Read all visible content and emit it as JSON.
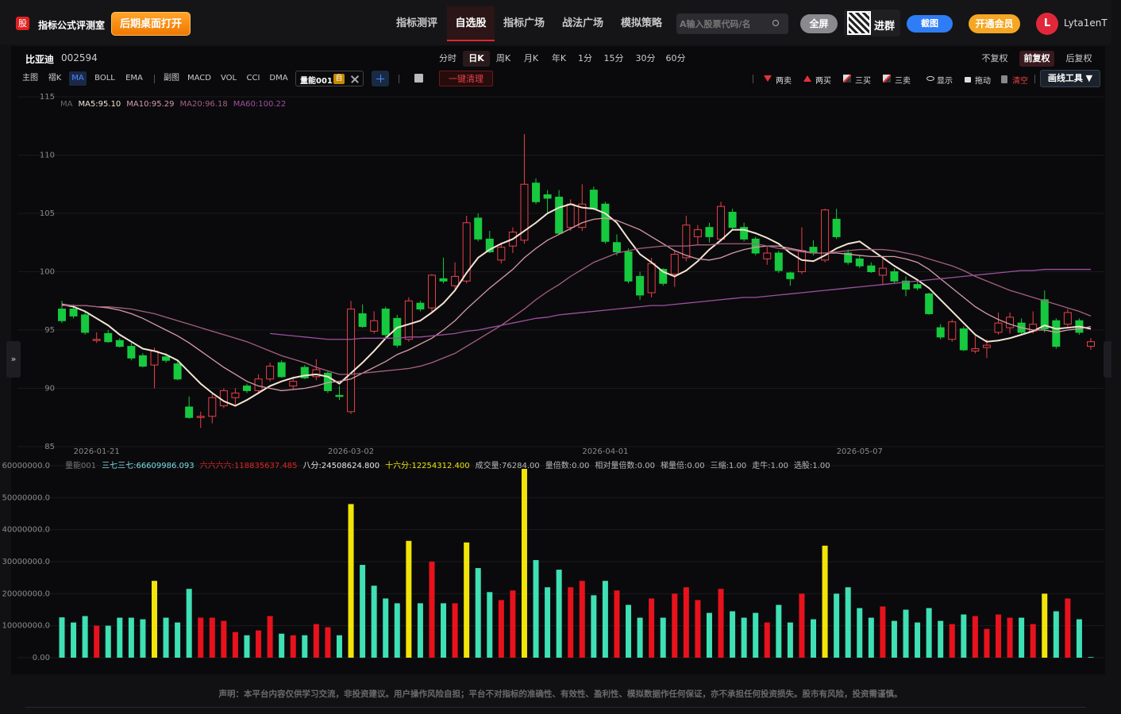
{
  "header": {
    "logo": "股",
    "app_name": "指标公式评测室",
    "open_desktop": "后期桌面打开",
    "nav": [
      "指标测评",
      "自选股",
      "指标广场",
      "战法广场",
      "模拟策略"
    ],
    "search_placeholder": "A输入股票代码/名",
    "fullscreen": "全屏",
    "join_group": "进群",
    "screenshot": "截图",
    "vip": "开通会员",
    "avatar": "L",
    "username": "Lyta1enT"
  },
  "stock": {
    "name": "比亚迪",
    "code": "002594"
  },
  "periods": [
    "分时",
    "日K",
    "周K",
    "月K",
    "年K",
    "1分",
    "15分",
    "30分",
    "60分"
  ],
  "adjust": [
    "不复权",
    "前复权",
    "后复权"
  ],
  "indicators": [
    "主图",
    "褶K",
    "MA",
    "BOLL",
    "EMA",
    "副图",
    "MACD",
    "VOL",
    "CCI",
    "DMA"
  ],
  "active_indicator": {
    "name": "量能001",
    "tag": "自"
  },
  "clear_button": "一键清理",
  "tools": [
    "两卖",
    "两买",
    "三买",
    "三卖",
    "显示",
    "拖动",
    "清空"
  ],
  "draw_tools": "画线工具 ▼",
  "sidebar_toggle": "»",
  "disclaimer": "声明：本平台内容仅供学习交流，非投资建议。用户操作风险自担；平台不对指标的准确性、有效性、盈利性、模拟数据作任何保证，亦不承担任何投资损失。股市有风险，投资需谨慎。",
  "chart_data": [
    {
      "type": "candlestick",
      "legend_title": "MA",
      "categories": [
        null,
        null,
        null,
        "2026-01-21",
        null,
        null,
        null,
        null,
        null,
        null,
        null,
        null,
        null,
        null,
        null,
        null,
        null,
        null,
        null,
        null,
        null,
        null,
        null,
        null,
        null,
        "2026-03-02",
        null,
        null,
        null,
        null,
        null,
        null,
        null,
        null,
        null,
        null,
        null,
        null,
        null,
        null,
        null,
        null,
        null,
        null,
        null,
        null,
        null,
        "2026-04-01",
        null,
        null,
        null,
        null,
        null,
        null,
        null,
        null,
        null,
        null,
        null,
        null,
        null,
        null,
        null,
        null,
        null,
        null,
        null,
        null,
        null,
        "2026-05-07",
        null,
        null,
        null,
        null,
        null,
        null,
        null,
        null,
        null,
        null,
        null,
        null,
        null,
        null,
        null,
        null,
        null,
        null,
        null,
        null
      ],
      "open": [
        96.8,
        96.8,
        96.3,
        94.1,
        94.7,
        94.1,
        93.6,
        92.8,
        92,
        92.7,
        92.1,
        88.4,
        87.5,
        87.6,
        88.5,
        89.2,
        90.2,
        89.8,
        90.8,
        92.2,
        90.2,
        91.8,
        91,
        91.3,
        89.4,
        88,
        96.4,
        94.9,
        96.8,
        96,
        94.2,
        97.3,
        96.9,
        99.4,
        98.8,
        99.2,
        104.6,
        102.8,
        101,
        102.2,
        102.7,
        107.6,
        106.6,
        106.4,
        103.8,
        103.8,
        107,
        105.8,
        102.5,
        101.7,
        99.6,
        98.2,
        100.2,
        99.8,
        101.2,
        103,
        103.8,
        102.8,
        105.1,
        103.8,
        102.8,
        101.1,
        101.6,
        99.9,
        100,
        102.1,
        101,
        104.5,
        101.6,
        101.1,
        100.5,
        99.7,
        100,
        99.2,
        98.9,
        98.1,
        95.2,
        94.2,
        95.1,
        93.2,
        93.5,
        94.8,
        95.2,
        95.6,
        94.9,
        97.6,
        95.8,
        95.5,
        95.8,
        93.6
      ],
      "high": [
        97.5,
        97.2,
        96.6,
        94.8,
        95,
        94.3,
        93.9,
        93,
        93.5,
        93,
        92.3,
        89.3,
        88,
        89.5,
        90,
        90,
        90.4,
        91.2,
        92.2,
        92.4,
        91,
        92,
        92.5,
        91.5,
        90.2,
        97.5,
        97.2,
        96.6,
        97,
        96.3,
        97.8,
        97.5,
        99.8,
        101.2,
        100.8,
        104.8,
        105,
        103.5,
        102.5,
        103.8,
        111.8,
        108,
        107,
        107,
        106.2,
        107.5,
        107.3,
        106,
        103.2,
        102,
        100,
        101.2,
        100.3,
        101.8,
        104.8,
        104,
        104.2,
        106,
        105.4,
        104.2,
        103,
        102.2,
        101.8,
        100,
        103.8,
        102.7,
        105.4,
        105.4,
        101.9,
        101.4,
        100.8,
        101.1,
        100.3,
        99.6,
        99.2,
        98.2,
        95.5,
        95.9,
        95.3,
        94.5,
        94.2,
        96.5,
        96.5,
        96,
        96.6,
        98.4,
        96,
        96.8,
        96,
        94.3
      ],
      "low": [
        95.6,
        96,
        94.6,
        93.9,
        93.9,
        93.5,
        92.4,
        91.8,
        90,
        92.2,
        90.7,
        87.4,
        86.6,
        87,
        88.3,
        88.6,
        89.6,
        89.5,
        90.6,
        90.9,
        89.9,
        90.8,
        90.7,
        89.6,
        89,
        87.8,
        95.2,
        94.7,
        94.4,
        93.5,
        94,
        96.6,
        96.5,
        99,
        98.5,
        99,
        102.6,
        101.6,
        100.7,
        101.6,
        102.4,
        105.8,
        105,
        103.2,
        103.5,
        103.5,
        105.3,
        102.4,
        101.4,
        99,
        97.6,
        97.8,
        98.8,
        98.7,
        100.9,
        102.3,
        102.5,
        102.6,
        103.6,
        102.6,
        101.4,
        100.6,
        99.9,
        98.8,
        99.8,
        101.4,
        100.8,
        102.8,
        100.6,
        100.3,
        99.9,
        98.9,
        99,
        97.9,
        98.4,
        96.3,
        94.2,
        94,
        93.2,
        93,
        92.6,
        94.6,
        94.7,
        94.6,
        94.7,
        94.8,
        93.4,
        95.3,
        94.6,
        93.3
      ],
      "close": [
        95.8,
        96.2,
        94.8,
        94.2,
        94,
        93.6,
        92.6,
        91.9,
        93.2,
        92.4,
        90.8,
        87.5,
        87.6,
        89.2,
        89.8,
        89.6,
        89.8,
        90.8,
        91.9,
        91,
        90.6,
        90.9,
        91.6,
        89.8,
        89.3,
        96.8,
        95.3,
        95.8,
        94.6,
        93.7,
        97.5,
        96.8,
        99.7,
        99.2,
        99.6,
        104.2,
        102.8,
        101.7,
        102.1,
        103.4,
        107.5,
        106,
        106.3,
        103.3,
        105.8,
        105.8,
        105.4,
        102.6,
        101.7,
        99.2,
        98,
        100.7,
        99,
        101.5,
        104,
        103.6,
        103,
        105.6,
        103.8,
        102.8,
        101.6,
        101.6,
        100.1,
        99.4,
        101.8,
        101.6,
        105.3,
        103,
        100.8,
        100.5,
        100,
        100.3,
        99.2,
        98.5,
        98.6,
        96.4,
        94.4,
        95.7,
        93.3,
        93.4,
        93.7,
        95.6,
        96.1,
        94.8,
        95.5,
        95.1,
        93.6,
        96.5,
        94.8,
        94
      ],
      "up_color": "#e8404a",
      "down_color": "#16c93e",
      "ylim": [
        85,
        115
      ],
      "yticks": [
        85,
        90,
        95,
        100,
        105,
        110,
        115
      ],
      "series": [
        {
          "name": "MA5:95.10",
          "color": "#f3e4d2",
          "values": [
            97.2,
            97,
            96.6,
            96,
            95.4,
            94.6,
            94,
            93.4,
            93.2,
            92.9,
            92.4,
            91.4,
            90.4,
            89.6,
            88.9,
            88.5,
            89,
            89.6,
            90.2,
            90.6,
            90.9,
            91.1,
            91.2,
            91,
            90.4,
            91.3,
            92.2,
            93.2,
            94.3,
            95.2,
            95.5,
            95.8,
            96.5,
            97.3,
            98.4,
            99.9,
            101.2,
            101.9,
            102.4,
            102.8,
            103.5,
            104.2,
            105,
            105.5,
            105.8,
            105.5,
            105.4,
            105,
            104.2,
            102.8,
            101.5,
            100.8,
            100,
            99.6,
            100.1,
            100.9,
            101.9,
            102.7,
            103.6,
            103.6,
            103.3,
            102.9,
            102.4,
            101.6,
            101,
            100.9,
            101.4,
            102,
            102.4,
            102.6,
            101.9,
            101.2,
            100.5,
            99.9,
            99.3,
            98.6,
            97.6,
            96.6,
            95.6,
            94.6,
            94,
            94.1,
            94.3,
            94.6,
            94.9,
            95.4,
            95.1,
            95.2,
            95.3,
            95.1
          ]
        },
        {
          "name": "MA10:95.29",
          "color": "#d89aaa",
          "values": [
            97.2,
            97.1,
            97.1,
            97,
            96.9,
            96.7,
            96.4,
            96,
            95.5,
            95,
            94.5,
            93.9,
            93.2,
            92.5,
            91.8,
            91.2,
            90.6,
            90.2,
            90,
            89.8,
            89.9,
            90,
            90.2,
            90.5,
            90.6,
            90.8,
            91.3,
            91.8,
            92.3,
            92.9,
            93.3,
            93.8,
            94.3,
            95,
            95.8,
            96.8,
            97.7,
            98.6,
            99.4,
            100.2,
            101.2,
            102,
            102.7,
            103.2,
            103.7,
            104.2,
            104.5,
            104.6,
            104.4,
            104,
            103.6,
            103,
            102.4,
            101.8,
            101.4,
            101.1,
            101,
            101.2,
            101.6,
            101.9,
            102.1,
            102.2,
            102.2,
            102,
            101.8,
            101.6,
            101.6,
            101.6,
            101.5,
            101.4,
            101.3,
            101.3,
            101.3,
            101.1,
            100.8,
            100.2,
            99.4,
            98.6,
            97.8,
            97,
            96.4,
            95.9,
            95.5,
            95.2,
            95,
            95,
            94.8,
            95,
            95.1,
            95.3
          ]
        },
        {
          "name": "MA20:96.18",
          "color": "#a5607e",
          "values": [
            97.1,
            97.1,
            97.1,
            97,
            97,
            96.9,
            96.8,
            96.6,
            96.4,
            96.1,
            95.8,
            95.5,
            95.2,
            94.9,
            94.6,
            94.3,
            94,
            93.6,
            93.2,
            92.8,
            92.5,
            92.2,
            91.8,
            91.5,
            91.2,
            91.2,
            91.3,
            91.4,
            91.5,
            91.6,
            91.7,
            91.9,
            92.2,
            92.6,
            93,
            93.6,
            94.2,
            94.8,
            95.4,
            96.1,
            96.8,
            97.6,
            98.3,
            98.9,
            99.6,
            100.2,
            100.8,
            101.2,
            101.6,
            101.8,
            102,
            102.1,
            102.2,
            102.2,
            102.2,
            102.3,
            102.3,
            102.4,
            102.4,
            102.4,
            102.4,
            102.2,
            102,
            101.9,
            101.7,
            101.6,
            101.6,
            101.7,
            101.8,
            101.9,
            101.9,
            101.9,
            101.8,
            101.6,
            101.4,
            101.1,
            100.8,
            100.5,
            100.1,
            99.6,
            99.2,
            98.8,
            98.4,
            98.1,
            97.8,
            97.5,
            97.2,
            96.9,
            96.6,
            96.2
          ]
        },
        {
          "name": "MA60:100.22",
          "color": "#a050a0",
          "values": [
            null,
            null,
            null,
            null,
            null,
            null,
            null,
            null,
            null,
            null,
            null,
            null,
            null,
            null,
            null,
            null,
            null,
            null,
            94.7,
            94.6,
            94.5,
            94.4,
            94.3,
            94.2,
            94.2,
            94.2,
            94.3,
            94.3,
            94.3,
            94.3,
            94.4,
            94.4,
            94.5,
            94.6,
            94.7,
            94.9,
            95,
            95.2,
            95.4,
            95.6,
            95.8,
            96,
            96.1,
            96.3,
            96.4,
            96.5,
            96.6,
            96.7,
            96.8,
            96.9,
            97,
            97.1,
            97.1,
            97.2,
            97.3,
            97.4,
            97.5,
            97.6,
            97.7,
            97.8,
            97.8,
            97.9,
            98,
            98.1,
            98.2,
            98.3,
            98.4,
            98.5,
            98.6,
            98.7,
            98.8,
            98.9,
            99,
            99.1,
            99.2,
            99.3,
            99.4,
            99.5,
            99.6,
            99.7,
            99.8,
            99.9,
            100,
            100.1,
            100.1,
            100.2,
            100.2,
            100.2,
            100.2,
            100.2
          ]
        }
      ]
    },
    {
      "type": "bar",
      "title": "量能001",
      "values": [
        12600000,
        11000000,
        13000000,
        10000000,
        10000000,
        12500000,
        12500000,
        12000000,
        24000000,
        12500000,
        11000000,
        21500000,
        12500000,
        12500000,
        11500000,
        8000000,
        7000000,
        8500000,
        13000000,
        7500000,
        7000000,
        7000000,
        10500000,
        9500000,
        7000000,
        48000000,
        29000000,
        22500000,
        18500000,
        17000000,
        36500000,
        17000000,
        30000000,
        17000000,
        17000000,
        36000000,
        28000000,
        20500000,
        18000000,
        21000000,
        59000000,
        30500000,
        22000000,
        27500000,
        22000000,
        24000000,
        19500000,
        24000000,
        21000000,
        16500000,
        12500000,
        18500000,
        12500000,
        20000000,
        22000000,
        18000000,
        14000000,
        21500000,
        14500000,
        12500000,
        14000000,
        11000000,
        16500000,
        11000000,
        20000000,
        12000000,
        35000000,
        20000000,
        22000000,
        15500000,
        12500000,
        16000000,
        11500000,
        15000000,
        11000000,
        15500000,
        11500000,
        10500000,
        13500000,
        13000000,
        9000000,
        13500000,
        12500000,
        12500000,
        10500000,
        20000000,
        14500000,
        18500000,
        12000000,
        200000
      ],
      "colors": [
        "#3ee0b4",
        "#3ee0b4",
        "#3ee0b4",
        "#e8121c",
        "#3ee0b4",
        "#3ee0b4",
        "#3ee0b4",
        "#3ee0b4",
        "#f2e409",
        "#3ee0b4",
        "#3ee0b4",
        "#3ee0b4",
        "#e8121c",
        "#e8121c",
        "#e8121c",
        "#e8121c",
        "#3ee0b4",
        "#e8121c",
        "#e8121c",
        "#3ee0b4",
        "#e8121c",
        "#3ee0b4",
        "#e8121c",
        "#e8121c",
        "#3ee0b4",
        "#f2e409",
        "#3ee0b4",
        "#3ee0b4",
        "#3ee0b4",
        "#3ee0b4",
        "#f2e409",
        "#3ee0b4",
        "#e8121c",
        "#3ee0b4",
        "#e8121c",
        "#f2e409",
        "#3ee0b4",
        "#3ee0b4",
        "#e8121c",
        "#e8121c",
        "#f2e409",
        "#3ee0b4",
        "#3ee0b4",
        "#3ee0b4",
        "#e8121c",
        "#e8121c",
        "#3ee0b4",
        "#3ee0b4",
        "#e8121c",
        "#3ee0b4",
        "#3ee0b4",
        "#e8121c",
        "#3ee0b4",
        "#e8121c",
        "#e8121c",
        "#e8121c",
        "#3ee0b4",
        "#e8121c",
        "#3ee0b4",
        "#3ee0b4",
        "#3ee0b4",
        "#e8121c",
        "#3ee0b4",
        "#3ee0b4",
        "#e8121c",
        "#3ee0b4",
        "#f2e409",
        "#3ee0b4",
        "#3ee0b4",
        "#3ee0b4",
        "#3ee0b4",
        "#e8121c",
        "#3ee0b4",
        "#3ee0b4",
        "#3ee0b4",
        "#3ee0b4",
        "#3ee0b4",
        "#e8121c",
        "#3ee0b4",
        "#e8121c",
        "#e8121c",
        "#e8121c",
        "#e8121c",
        "#3ee0b4",
        "#e8121c",
        "#f2e409",
        "#3ee0b4",
        "#e8121c",
        "#3ee0b4",
        "#3ee0b4"
      ],
      "ylim": [
        0,
        60000000
      ],
      "yticks": [
        {
          "value": 0,
          "label": "0.00"
        },
        {
          "value": 10000000,
          "label": "10000000.0"
        },
        {
          "value": 20000000,
          "label": "20000000.0"
        },
        {
          "value": 30000000,
          "label": "30000000.0"
        },
        {
          "value": 40000000,
          "label": "40000000.0"
        },
        {
          "value": 50000000,
          "label": "50000000.0"
        },
        {
          "value": 60000000,
          "label": "60000000.0"
        }
      ],
      "annotations": [
        {
          "text": "三七三七:66609986.093",
          "color": "#7fdde4"
        },
        {
          "text": "六六六六:118835637.485",
          "color": "#e02424"
        },
        {
          "text": "八分:24508624.800",
          "color": "#e8e8e8"
        },
        {
          "text": "十六分:12254312.400",
          "color": "#f2e409"
        },
        {
          "text": "成交量:76284.00",
          "color": "#b8b8b8"
        },
        {
          "text": "量倍数:0.00",
          "color": "#b8b8b8"
        },
        {
          "text": "相对量倍数:0.00",
          "color": "#b8b8b8"
        },
        {
          "text": "梯量倍:0.00",
          "color": "#b8b8b8"
        },
        {
          "text": "三缩:1.00",
          "color": "#b8b8b8"
        },
        {
          "text": "走牛:1.00",
          "color": "#b8b8b8"
        },
        {
          "text": "选股:1.00",
          "color": "#b8b8b8"
        }
      ]
    }
  ]
}
